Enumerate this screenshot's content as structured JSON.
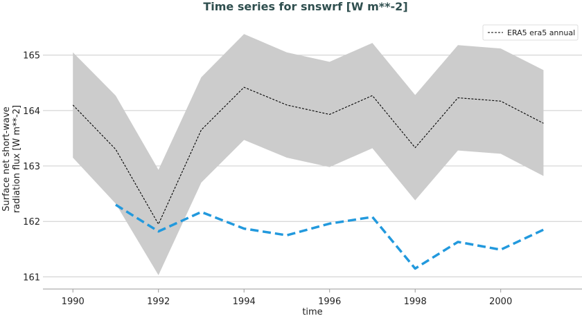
{
  "chart_data": {
    "type": "line",
    "title": "Time series for snswrf [W m**-2]",
    "xlabel": "time",
    "ylabel_lines": [
      "Surface net short-wave",
      "radiation flux [W m**-2]"
    ],
    "xlim": [
      1989.3,
      2001.9
    ],
    "ylim": [
      160.78,
      165.62
    ],
    "x_ticks": [
      1990,
      1992,
      1994,
      1996,
      1998,
      2000
    ],
    "y_ticks": [
      161,
      162,
      163,
      164,
      165
    ],
    "grid": "horizontal",
    "legend_position": "top-right",
    "series": [
      {
        "name": "ERA5 era5 annual",
        "style": "dashed-thin",
        "color": "#000000",
        "x": [
          1990,
          1991,
          1992,
          1993,
          1994,
          1995,
          1996,
          1997,
          1998,
          1999,
          2000,
          2001
        ],
        "values": [
          164.1,
          163.3,
          161.95,
          163.65,
          164.42,
          164.1,
          163.93,
          164.27,
          163.33,
          164.23,
          164.17,
          163.77
        ]
      },
      {
        "style": "dashed-thick",
        "color": "#2299dd",
        "x": [
          1991,
          1992,
          1993,
          1994,
          1995,
          1996,
          1997,
          1998,
          1999,
          2000,
          2001
        ],
        "values": [
          162.3,
          161.82,
          162.17,
          161.87,
          161.75,
          161.96,
          162.08,
          161.15,
          161.63,
          161.49,
          161.85
        ]
      }
    ],
    "band": {
      "color": "#cccccc",
      "x": [
        1990,
        1991,
        1992,
        1993,
        1994,
        1995,
        1996,
        1997,
        1998,
        1999,
        2000,
        2001
      ],
      "upper": [
        165.05,
        164.27,
        162.93,
        164.6,
        165.38,
        165.05,
        164.88,
        165.22,
        164.28,
        165.18,
        165.12,
        164.73
      ],
      "lower": [
        163.15,
        162.32,
        161.03,
        162.7,
        163.47,
        163.15,
        162.98,
        163.32,
        162.38,
        163.28,
        163.22,
        162.82
      ]
    }
  }
}
